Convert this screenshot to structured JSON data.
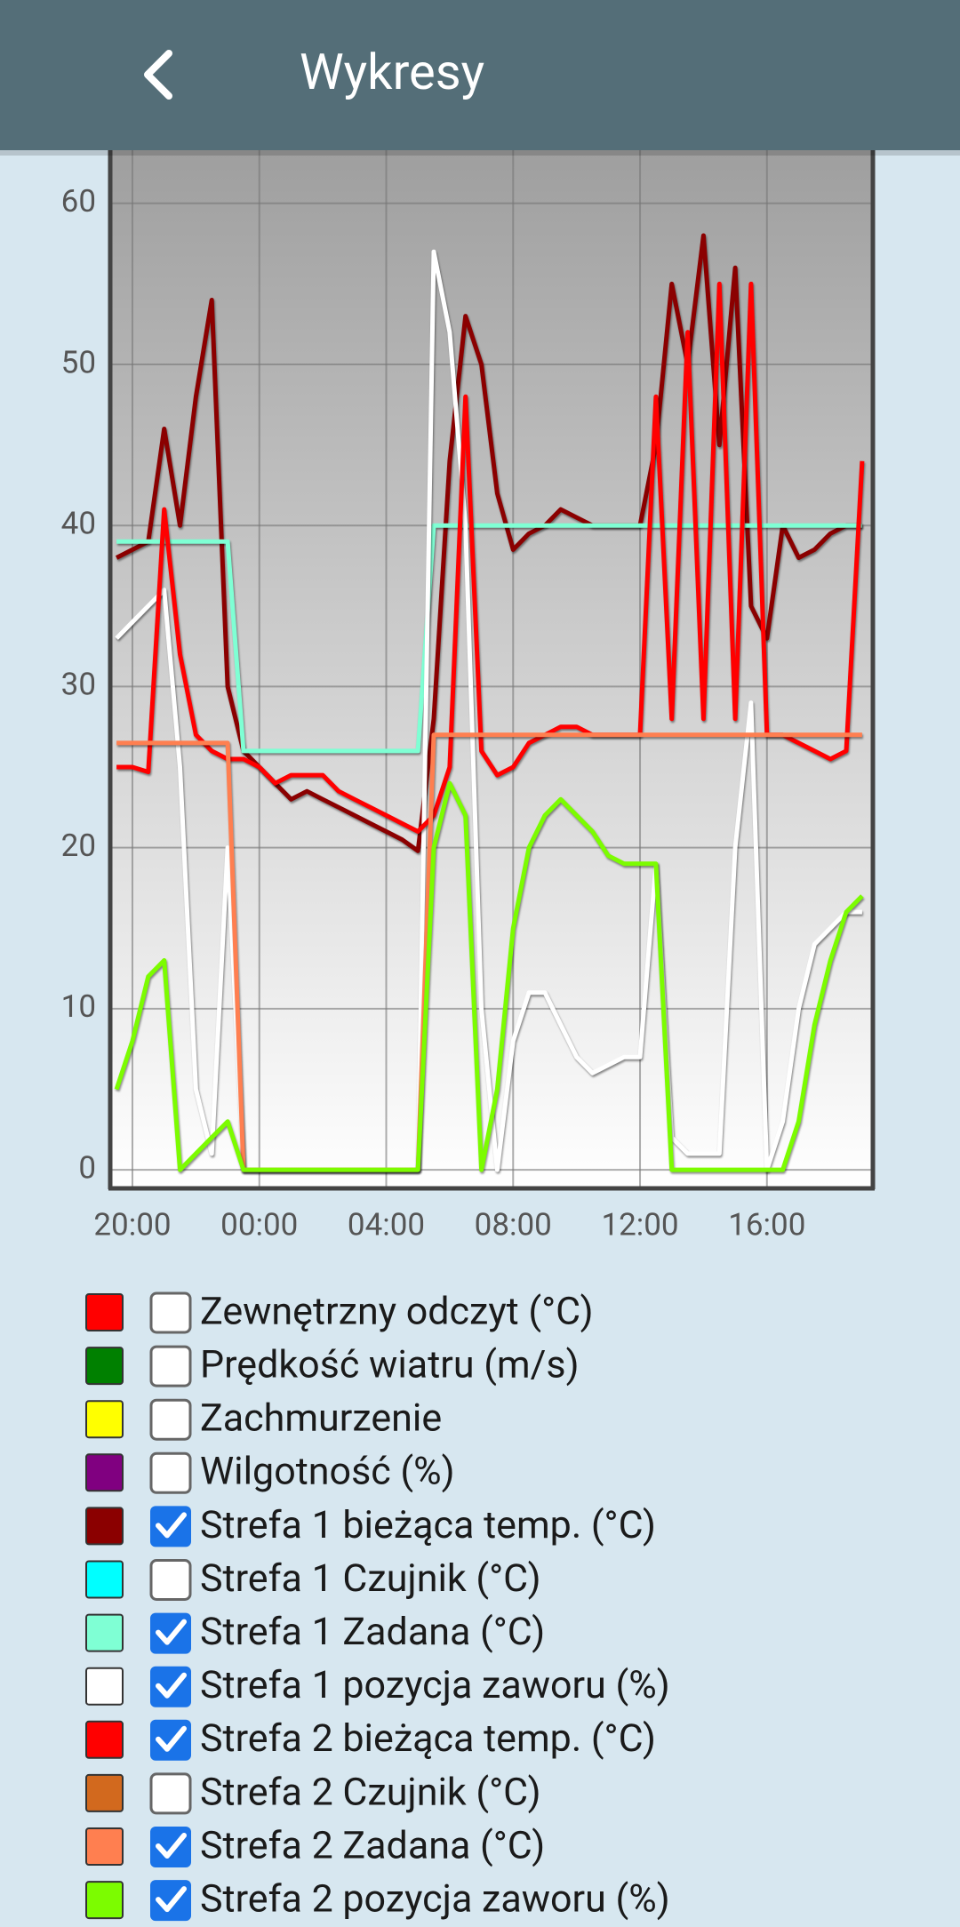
{
  "header": {
    "title": "Wykresy"
  },
  "chart_data": {
    "type": "line",
    "x": [
      19.5,
      20,
      20.5,
      21,
      21.5,
      22,
      22.5,
      23,
      23.5,
      24,
      24.5,
      25,
      25.5,
      26,
      26.5,
      27,
      27.5,
      28,
      28.5,
      29,
      29.5,
      30,
      30.5,
      31,
      31.5,
      32,
      32.5,
      33,
      33.5,
      34,
      34.5,
      35,
      35.5,
      36,
      36.5,
      37,
      37.5,
      38,
      38.5,
      39,
      39.5,
      40,
      40.5,
      41,
      41.5,
      42,
      42.5,
      43
    ],
    "xlim": [
      19.3,
      43.34
    ],
    "xticks": [
      {
        "value": 20,
        "label": "20:00"
      },
      {
        "value": 24,
        "label": "00:00"
      },
      {
        "value": 28,
        "label": "04:00"
      },
      {
        "value": 32,
        "label": "08:00"
      },
      {
        "value": 36,
        "label": "12:00"
      },
      {
        "value": 40,
        "label": "16:00"
      }
    ],
    "ylim": [
      -1.1,
      63.3
    ],
    "yticks": [
      0,
      10,
      20,
      30,
      40,
      50,
      60
    ],
    "grid": true,
    "series": [
      {
        "name": "Zewnętrzny odczyt (°C)",
        "color": "#ff0000",
        "checked": false
      },
      {
        "name": "Prędkość wiatru (m/s)",
        "color": "#008000",
        "checked": false
      },
      {
        "name": "Zachmurzenie",
        "color": "#ffff00",
        "checked": false
      },
      {
        "name": "Wilgotność (%)",
        "color": "#800080",
        "checked": false
      },
      {
        "name": "Strefa 1 bieżąca temp. (°C)",
        "color": "#8b0000",
        "checked": true,
        "values": [
          38,
          38.5,
          39,
          46,
          40,
          48,
          54,
          30,
          26,
          25,
          24,
          23,
          23.5,
          23,
          22.5,
          22,
          21.5,
          21,
          20.5,
          19.8,
          28,
          44,
          53,
          50,
          42,
          38.5,
          39.5,
          40,
          41,
          40.5,
          40,
          40,
          40,
          40,
          45,
          55,
          50,
          58,
          45,
          56,
          35,
          33,
          40,
          38,
          38.5,
          39.5,
          40,
          40
        ]
      },
      {
        "name": "Strefa 1 Czujnik (°C)",
        "color": "#00ffff",
        "checked": false
      },
      {
        "name": "Strefa 1 Zadana (°C)",
        "color": "#7fffd4",
        "checked": true,
        "values": [
          39,
          39,
          39,
          39,
          39,
          39,
          39,
          39,
          26,
          26,
          26,
          26,
          26,
          26,
          26,
          26,
          26,
          26,
          26,
          26,
          40,
          40,
          40,
          40,
          40,
          40,
          40,
          40,
          40,
          40,
          40,
          40,
          40,
          40,
          40,
          40,
          40,
          40,
          40,
          40,
          40,
          40,
          40,
          40,
          40,
          40,
          40,
          40
        ]
      },
      {
        "name": "Strefa 1 pozycja zaworu (%)",
        "color": "#ffffff",
        "checked": true,
        "values": [
          33,
          34,
          35,
          36,
          25,
          5,
          1,
          20,
          0,
          0,
          0,
          0,
          0,
          0,
          0,
          0,
          0,
          0,
          0,
          0,
          57,
          52,
          40,
          10,
          0,
          8,
          11,
          11,
          9,
          7,
          6,
          6.5,
          7,
          7,
          19,
          2,
          1,
          1,
          1,
          20,
          29,
          0,
          3,
          10,
          14,
          15,
          16,
          16
        ]
      },
      {
        "name": "Strefa 2 bieżąca temp. (°C)",
        "color": "#ff0000",
        "checked": true,
        "values": [
          25,
          25,
          24.7,
          41,
          32,
          27,
          26,
          25.5,
          25.5,
          25,
          24,
          24.5,
          24.5,
          24.5,
          23.5,
          23,
          22.5,
          22,
          21.5,
          21,
          22,
          25,
          48,
          26,
          24.5,
          25,
          26.5,
          27,
          27.5,
          27.5,
          27,
          27,
          27,
          27,
          48,
          28,
          52,
          28,
          55,
          28,
          55,
          27,
          27,
          26.5,
          26,
          25.5,
          26,
          44
        ]
      },
      {
        "name": "Strefa 2 Czujnik (°C)",
        "color": "#d2691e",
        "checked": false
      },
      {
        "name": "Strefa 2 Zadana (°C)",
        "color": "#ff7f50",
        "checked": true,
        "values": [
          26.5,
          26.5,
          26.5,
          26.5,
          26.5,
          26.5,
          26.5,
          26.5,
          0,
          0,
          0,
          0,
          0,
          0,
          0,
          0,
          0,
          0,
          0,
          0,
          27,
          27,
          27,
          27,
          27,
          27,
          27,
          27,
          27,
          27,
          27,
          27,
          27,
          27,
          27,
          27,
          27,
          27,
          27,
          27,
          27,
          27,
          27,
          27,
          27,
          27,
          27,
          27
        ]
      },
      {
        "name": "Strefa 2 pozycja zaworu (%)",
        "color": "#7cfc00",
        "checked": true,
        "values": [
          5,
          8,
          12,
          13,
          0,
          1,
          2,
          3,
          0,
          0,
          0,
          0,
          0,
          0,
          0,
          0,
          0,
          0,
          0,
          0,
          20,
          24,
          22,
          0,
          5,
          15,
          20,
          22,
          23,
          22,
          21,
          19.5,
          19,
          19,
          19,
          0,
          0,
          0,
          0,
          0,
          0,
          0,
          0,
          3,
          9,
          13,
          16,
          17
        ]
      }
    ]
  }
}
